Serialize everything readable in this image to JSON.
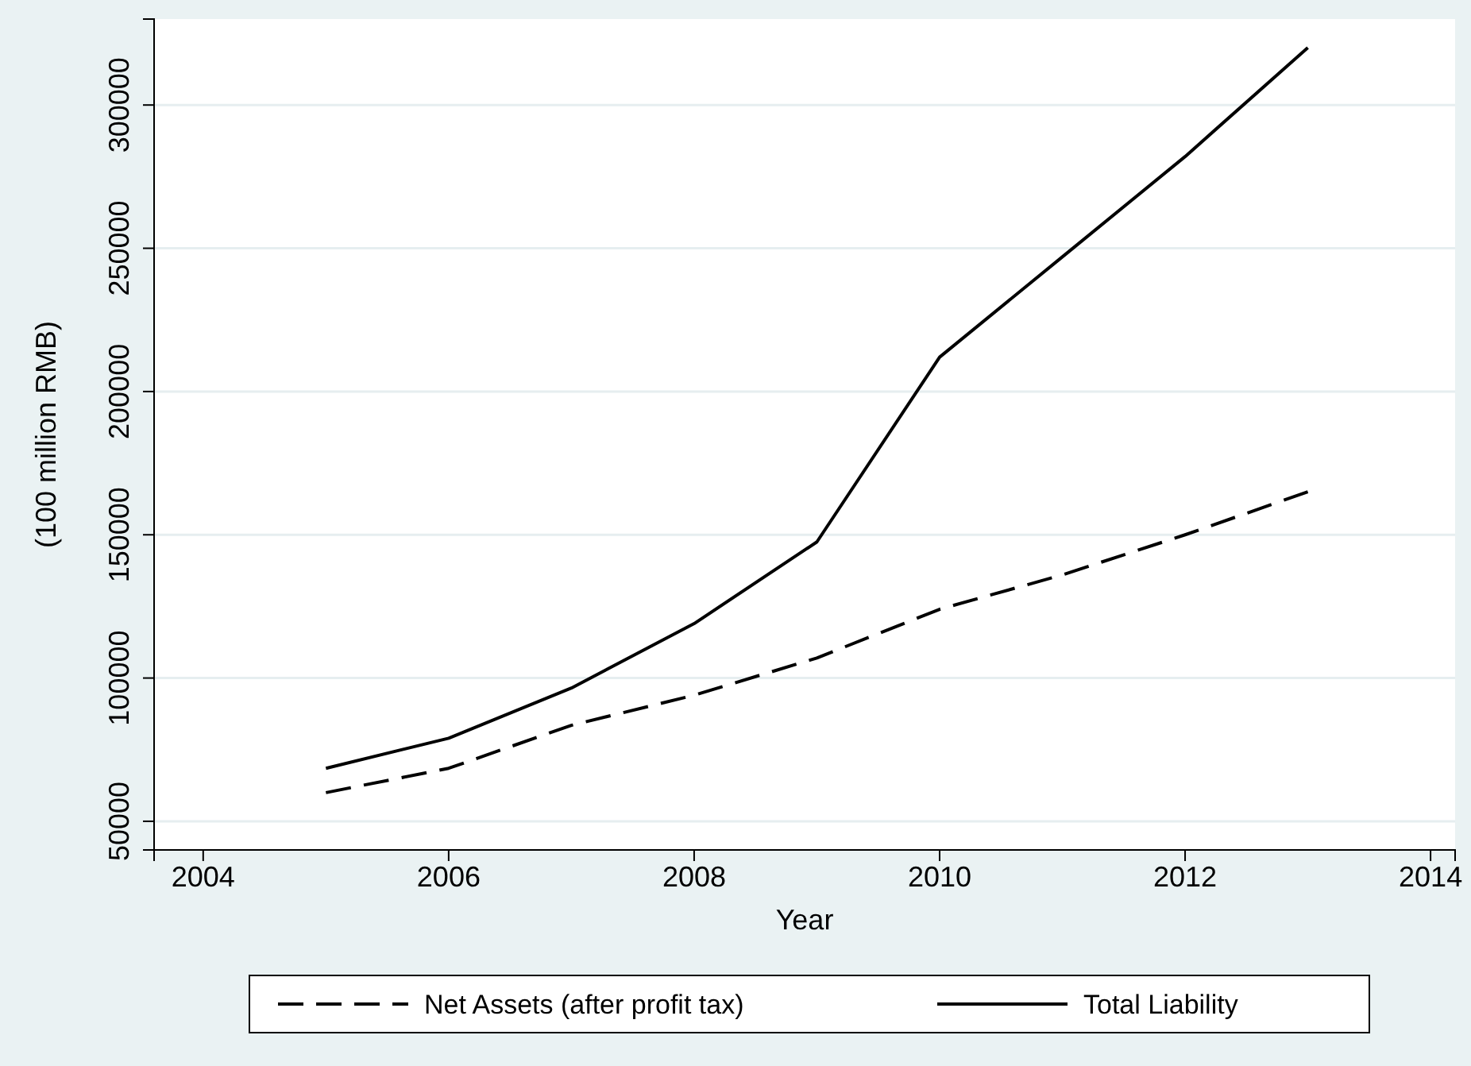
{
  "chart_data": {
    "type": "line",
    "xlabel": "Year",
    "ylabel": "(100 million RMB)",
    "x": [
      2005,
      2006,
      2007,
      2008,
      2009,
      2010,
      2011,
      2012,
      2013
    ],
    "series": [
      {
        "name": "Net Assets (after profit tax)",
        "color": "#000000",
        "line_style": "dashed",
        "values": [
          60000,
          68500,
          83500,
          94000,
          107000,
          124000,
          136000,
          150000,
          165000
        ]
      },
      {
        "name": "Total Liability",
        "color": "#000000",
        "line_style": "solid",
        "values": [
          68500,
          79000,
          96500,
          119000,
          147500,
          212000,
          247000,
          282000,
          320000
        ]
      }
    ],
    "xlim": [
      2003.6,
      2014.2
    ],
    "xticks": [
      2004,
      2006,
      2008,
      2010,
      2012,
      2014
    ],
    "ylim": [
      40000,
      330000
    ],
    "yticks": [
      50000,
      100000,
      150000,
      200000,
      250000,
      300000
    ],
    "grid": "y",
    "legend": "bottom",
    "marker": "none"
  }
}
